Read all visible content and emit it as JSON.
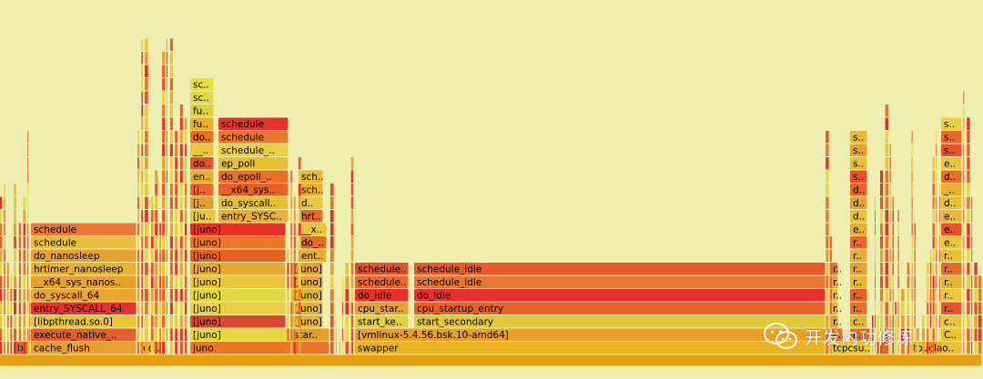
{
  "chart_data": {
    "type": "flamegraph",
    "depth_labels_from_bottom": true,
    "frames": [
      {
        "d": 0,
        "x0": 0,
        "x1": 1,
        "name": "",
        "color": "#e8a010"
      },
      {
        "d": 1,
        "x0": 0.0148,
        "x1": 0.0306,
        "name": "b..",
        "color": "#e06820"
      },
      {
        "d": 1,
        "x0": 0.0315,
        "x1": 0.1398,
        "name": "cache_flush",
        "color": "#e8a030"
      },
      {
        "d": 1,
        "x0": 0.1426,
        "x1": 0.1648,
        "name": "co..",
        "color": "#e3b52a"
      },
      {
        "d": 1,
        "x0": 0.1935,
        "x1": 0.3361,
        "name": "juno",
        "color": "#e87828"
      },
      {
        "d": 1,
        "x0": 0.3611,
        "x1": 0.8407,
        "name": "swapper",
        "color": "#e8b520"
      },
      {
        "d": 1,
        "x0": 0.8444,
        "x1": 0.887,
        "name": "tcpcsu..",
        "color": "#e8c830"
      },
      {
        "d": 1,
        "x0": 0.8963,
        "x1": 0.9037,
        "name": "",
        "color": "#e87020"
      },
      {
        "d": 1,
        "x0": 0.9259,
        "x1": 0.9796,
        "name": "touclao..",
        "color": "#e8c030"
      },
      {
        "d": 2,
        "x0": 0.0315,
        "x1": 0.1398,
        "name": "execute_native_..",
        "color": "#e06030"
      },
      {
        "d": 2,
        "x0": 0.1935,
        "x1": 0.3361,
        "name": "[juno]",
        "color": "#e4d840"
      },
      {
        "d": 2,
        "x0": 0.3611,
        "x1": 0.8407,
        "name": "[vmlinux-5.4.56.bsk.10-amd64]",
        "color": "#e8a028"
      },
      {
        "d": 2,
        "x0": 0.2963,
        "x1": 0.3361,
        "name": "star..",
        "color": "#e0a030"
      },
      {
        "d": 3,
        "x0": 0.0315,
        "x1": 0.1398,
        "name": "[libpthread.so.0]",
        "color": "#e8c830"
      },
      {
        "d": 3,
        "x0": 0.1935,
        "x1": 0.2917,
        "name": "[juno]",
        "color": "#d84830"
      },
      {
        "d": 3,
        "x0": 0.2963,
        "x1": 0.3296,
        "name": "[juno]",
        "color": "#e4b830"
      },
      {
        "d": 3,
        "x0": 0.3611,
        "x1": 0.4167,
        "name": "start_ke..",
        "color": "#e3d040"
      },
      {
        "d": 3,
        "x0": 0.4213,
        "x1": 0.8407,
        "name": "start_secondary",
        "color": "#e0c838"
      },
      {
        "d": 4,
        "x0": 0.0315,
        "x1": 0.1398,
        "name": "entry_SYSCALL_64",
        "color": "#e83030"
      },
      {
        "d": 4,
        "x0": 0.1935,
        "x1": 0.2917,
        "name": "[juno]",
        "color": "#e8d040"
      },
      {
        "d": 4,
        "x0": 0.2963,
        "x1": 0.3296,
        "name": "[juno]",
        "color": "#e8b030"
      },
      {
        "d": 4,
        "x0": 0.3611,
        "x1": 0.4167,
        "name": "cpu_star..",
        "color": "#e8a030"
      },
      {
        "d": 4,
        "x0": 0.4213,
        "x1": 0.8407,
        "name": "cpu_startup_entry",
        "color": "#e86028"
      },
      {
        "d": 5,
        "x0": 0.0315,
        "x1": 0.1398,
        "name": "do_syscall_64",
        "color": "#e8a830"
      },
      {
        "d": 5,
        "x0": 0.1935,
        "x1": 0.2917,
        "name": "[juno]",
        "color": "#e0d840"
      },
      {
        "d": 5,
        "x0": 0.2963,
        "x1": 0.3296,
        "name": "[juno]",
        "color": "#e0b830"
      },
      {
        "d": 5,
        "x0": 0.3611,
        "x1": 0.4167,
        "name": "do_idle",
        "color": "#e83028"
      },
      {
        "d": 5,
        "x0": 0.4213,
        "x1": 0.8407,
        "name": "do_idle",
        "color": "#e83030"
      },
      {
        "d": 6,
        "x0": 0.0315,
        "x1": 0.1398,
        "name": "__x64_sys_nanos..",
        "color": "#e8a028"
      },
      {
        "d": 6,
        "x0": 0.1935,
        "x1": 0.2917,
        "name": "[juno]",
        "color": "#e8c838"
      },
      {
        "d": 6,
        "x0": 0.2963,
        "x1": 0.3296,
        "name": "[juno]",
        "color": "#e8a838"
      },
      {
        "d": 6,
        "x0": 0.3611,
        "x1": 0.4167,
        "name": "schedule..",
        "color": "#e86830"
      },
      {
        "d": 6,
        "x0": 0.4213,
        "x1": 0.8407,
        "name": "schedule_idle",
        "color": "#e87830"
      },
      {
        "d": 7,
        "x0": 0.0315,
        "x1": 0.1398,
        "name": "hrtimer_nanosleep",
        "color": "#e8b030"
      },
      {
        "d": 7,
        "x0": 0.1935,
        "x1": 0.2917,
        "name": "[juno]",
        "color": "#e8a830"
      },
      {
        "d": 7,
        "x0": 0.2963,
        "x1": 0.3296,
        "name": "[juno]",
        "color": "#e8a030"
      },
      {
        "d": 7,
        "x0": 0.3611,
        "x1": 0.4167,
        "name": "schedule..",
        "color": "#e85030"
      },
      {
        "d": 7,
        "x0": 0.4213,
        "x1": 0.8407,
        "name": "schedule_idle",
        "color": "#e85828"
      },
      {
        "d": 8,
        "x0": 0.0315,
        "x1": 0.1398,
        "name": "do_nanosleep",
        "color": "#e8a030"
      },
      {
        "d": 8,
        "x0": 0.1935,
        "x1": 0.2917,
        "name": "[juno]",
        "color": "#e86020"
      },
      {
        "d": 8,
        "x0": 0.3037,
        "x1": 0.3333,
        "name": "ent..",
        "color": "#e8b028"
      },
      {
        "d": 9,
        "x0": 0.0315,
        "x1": 0.1398,
        "name": "schedule",
        "color": "#e8c040"
      },
      {
        "d": 9,
        "x0": 0.1935,
        "x1": 0.2917,
        "name": "[juno]",
        "color": "#e87828"
      },
      {
        "d": 9,
        "x0": 0.3037,
        "x1": 0.3333,
        "name": "do_..",
        "color": "#e86828"
      },
      {
        "d": 10,
        "x0": 0.0315,
        "x1": 0.1398,
        "name": "schedule",
        "color": "#e87838"
      },
      {
        "d": 10,
        "x0": 0.1935,
        "x1": 0.2917,
        "name": "[juno]",
        "color": "#e83028"
      },
      {
        "d": 10,
        "x0": 0.3037,
        "x1": 0.3333,
        "name": "__x..",
        "color": "#e8c838"
      },
      {
        "d": 11,
        "x0": 0.1935,
        "x1": 0.2204,
        "name": "[ju..",
        "color": "#e8c838"
      },
      {
        "d": 11,
        "x0": 0.2222,
        "x1": 0.2944,
        "name": "entry_SYSC..",
        "color": "#e8b030"
      },
      {
        "d": 11,
        "x0": 0.3037,
        "x1": 0.3296,
        "name": "hrt..",
        "color": "#e86830"
      },
      {
        "d": 12,
        "x0": 0.1935,
        "x1": 0.2185,
        "name": "[j..",
        "color": "#e0a030"
      },
      {
        "d": 12,
        "x0": 0.2222,
        "x1": 0.2944,
        "name": "do_syscall..",
        "color": "#e4c030"
      },
      {
        "d": 12,
        "x0": 0.3037,
        "x1": 0.3296,
        "name": "d..",
        "color": "#e8c838"
      },
      {
        "d": 13,
        "x0": 0.1935,
        "x1": 0.2185,
        "name": "[j..",
        "color": "#e86830"
      },
      {
        "d": 13,
        "x0": 0.2222,
        "x1": 0.2944,
        "name": "__x64_sys..",
        "color": "#e86028"
      },
      {
        "d": 13,
        "x0": 0.3037,
        "x1": 0.3296,
        "name": "sch..",
        "color": "#e8b030"
      },
      {
        "d": 14,
        "x0": 0.1935,
        "x1": 0.2185,
        "name": "en..",
        "color": "#e8b030"
      },
      {
        "d": 14,
        "x0": 0.2222,
        "x1": 0.2944,
        "name": "do_epoll_..",
        "color": "#e87028"
      },
      {
        "d": 14,
        "x0": 0.3037,
        "x1": 0.3296,
        "name": "sch..",
        "color": "#e8b838"
      },
      {
        "d": 15,
        "x0": 0.1935,
        "x1": 0.2185,
        "name": "do..",
        "color": "#e85028"
      },
      {
        "d": 15,
        "x0": 0.2222,
        "x1": 0.2944,
        "name": "ep_poll",
        "color": "#e8c030"
      },
      {
        "d": 16,
        "x0": 0.1935,
        "x1": 0.2185,
        "name": "__..",
        "color": "#e8c838"
      },
      {
        "d": 16,
        "x0": 0.2222,
        "x1": 0.2944,
        "name": "schedule_..",
        "color": "#e8d040"
      },
      {
        "d": 17,
        "x0": 0.1935,
        "x1": 0.2185,
        "name": "do..",
        "color": "#e87028"
      },
      {
        "d": 17,
        "x0": 0.2222,
        "x1": 0.2944,
        "name": "schedule",
        "color": "#e87830"
      },
      {
        "d": 18,
        "x0": 0.1935,
        "x1": 0.2185,
        "name": "fu..",
        "color": "#e8b028"
      },
      {
        "d": 18,
        "x0": 0.2222,
        "x1": 0.2944,
        "name": "schedule",
        "color": "#e83030"
      },
      {
        "d": 19,
        "x0": 0.1935,
        "x1": 0.2185,
        "name": "fu..",
        "color": "#e0d040"
      },
      {
        "d": 20,
        "x0": 0.1935,
        "x1": 0.2185,
        "name": "sc..",
        "color": "#e4d840"
      },
      {
        "d": 21,
        "x0": 0.1935,
        "x1": 0.2185,
        "name": "sc..",
        "color": "#e4e040"
      },
      {
        "d": 2,
        "x0": 0.8444,
        "x1": 0.8583,
        "name": "c..",
        "color": "#e87028"
      },
      {
        "d": 2,
        "x0": 0.8648,
        "x1": 0.887,
        "name": "c..",
        "color": "#e86828"
      },
      {
        "d": 2,
        "x0": 0.9574,
        "x1": 0.9796,
        "name": "C..",
        "color": "#e8c030"
      },
      {
        "d": 3,
        "x0": 0.8444,
        "x1": 0.8537,
        "name": "r..",
        "color": "#e8a030"
      },
      {
        "d": 3,
        "x0": 0.8648,
        "x1": 0.8833,
        "name": "c..",
        "color": "#e0b830"
      },
      {
        "d": 3,
        "x0": 0.9574,
        "x1": 0.9796,
        "name": "c..",
        "color": "#e8c838"
      },
      {
        "d": 4,
        "x0": 0.8444,
        "x1": 0.8537,
        "name": "r..",
        "color": "#e8b030"
      },
      {
        "d": 4,
        "x0": 0.8648,
        "x1": 0.8833,
        "name": "r..",
        "color": "#e87028"
      },
      {
        "d": 4,
        "x0": 0.9574,
        "x1": 0.9796,
        "name": "r..",
        "color": "#e85030"
      },
      {
        "d": 5,
        "x0": 0.8444,
        "x1": 0.8537,
        "name": "r..",
        "color": "#e8c030"
      },
      {
        "d": 5,
        "x0": 0.8648,
        "x1": 0.8833,
        "name": "r..",
        "color": "#e86028"
      },
      {
        "d": 5,
        "x0": 0.9574,
        "x1": 0.9796,
        "name": "r..",
        "color": "#e8c840"
      },
      {
        "d": 6,
        "x0": 0.8444,
        "x1": 0.8537,
        "name": "r..",
        "color": "#e8a830"
      },
      {
        "d": 6,
        "x0": 0.8648,
        "x1": 0.8833,
        "name": "r..",
        "color": "#e8b830"
      },
      {
        "d": 6,
        "x0": 0.9574,
        "x1": 0.9796,
        "name": "r..",
        "color": "#e0b830"
      },
      {
        "d": 7,
        "x0": 0.8444,
        "x1": 0.8537,
        "name": "r..",
        "color": "#e87028"
      },
      {
        "d": 7,
        "x0": 0.8648,
        "x1": 0.8833,
        "name": "r..",
        "color": "#e8a030"
      },
      {
        "d": 7,
        "x0": 0.9574,
        "x1": 0.9796,
        "name": "r..",
        "color": "#e86830"
      },
      {
        "d": 8,
        "x0": 0.8648,
        "x1": 0.8833,
        "name": "r..",
        "color": "#e8b030"
      },
      {
        "d": 8,
        "x0": 0.9574,
        "x1": 0.9796,
        "name": "r..",
        "color": "#e8c030"
      },
      {
        "d": 9,
        "x0": 0.8648,
        "x1": 0.8833,
        "name": "r..",
        "color": "#e86830"
      },
      {
        "d": 9,
        "x0": 0.9574,
        "x1": 0.9796,
        "name": "e..",
        "color": "#e8c838"
      },
      {
        "d": 10,
        "x0": 0.8648,
        "x1": 0.8833,
        "name": "e..",
        "color": "#e8b030"
      },
      {
        "d": 10,
        "x0": 0.9574,
        "x1": 0.9796,
        "name": "e..",
        "color": "#e85030"
      },
      {
        "d": 11,
        "x0": 0.8648,
        "x1": 0.8833,
        "name": "d..",
        "color": "#e8c030"
      },
      {
        "d": 11,
        "x0": 0.9574,
        "x1": 0.9796,
        "name": "e..",
        "color": "#e8b838"
      },
      {
        "d": 12,
        "x0": 0.8648,
        "x1": 0.8833,
        "name": "d..",
        "color": "#e8a030"
      },
      {
        "d": 12,
        "x0": 0.9574,
        "x1": 0.9796,
        "name": "d..",
        "color": "#e8c030"
      },
      {
        "d": 13,
        "x0": 0.8648,
        "x1": 0.8833,
        "name": "d..",
        "color": "#e86028"
      },
      {
        "d": 13,
        "x0": 0.9574,
        "x1": 0.9796,
        "name": "_..",
        "color": "#e8b030"
      },
      {
        "d": 14,
        "x0": 0.8648,
        "x1": 0.8833,
        "name": "s..",
        "color": "#e85030"
      },
      {
        "d": 14,
        "x0": 0.9574,
        "x1": 0.9796,
        "name": "d..",
        "color": "#e87028"
      },
      {
        "d": 15,
        "x0": 0.8648,
        "x1": 0.8833,
        "name": "s..",
        "color": "#e8c030"
      },
      {
        "d": 15,
        "x0": 0.9574,
        "x1": 0.9796,
        "name": "e..",
        "color": "#e8c838"
      },
      {
        "d": 16,
        "x0": 0.8648,
        "x1": 0.8833,
        "name": "s..",
        "color": "#e8a030"
      },
      {
        "d": 16,
        "x0": 0.9574,
        "x1": 0.9796,
        "name": "s..",
        "color": "#e85030"
      },
      {
        "d": 17,
        "x0": 0.8648,
        "x1": 0.8833,
        "name": "s..",
        "color": "#e8b838"
      },
      {
        "d": 17,
        "x0": 0.9574,
        "x1": 0.9796,
        "name": "s..",
        "color": "#e86828"
      },
      {
        "d": 18,
        "x0": 0.9574,
        "x1": 0.9796,
        "name": "s..",
        "color": "#e8d040"
      }
    ]
  },
  "watermark": {
    "text": "开发内功修炼"
  }
}
